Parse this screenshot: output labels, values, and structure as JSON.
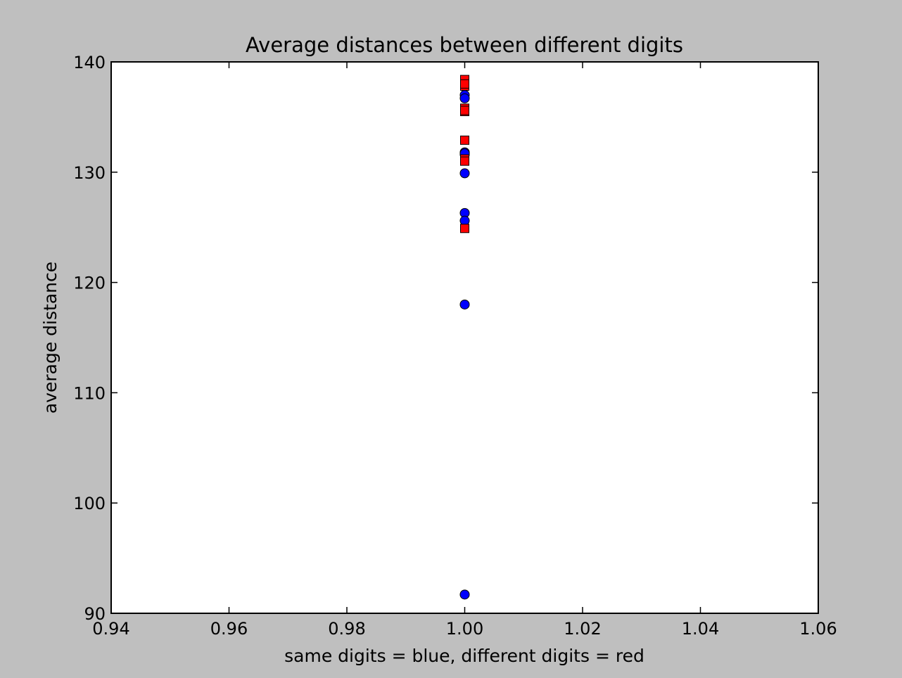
{
  "chart_data": {
    "type": "scatter",
    "title": "Average distances between different digits",
    "xlabel": "same digits = blue, different digits = red",
    "ylabel": "average distance",
    "xlim": [
      0.94,
      1.06
    ],
    "ylim": [
      90,
      140
    ],
    "xticks": [
      0.94,
      0.96,
      0.98,
      1.0,
      1.02,
      1.04,
      1.06
    ],
    "xtick_labels": [
      "0.94",
      "0.96",
      "0.98",
      "1.00",
      "1.02",
      "1.04",
      "1.06"
    ],
    "yticks": [
      90,
      100,
      110,
      120,
      130,
      140
    ],
    "ytick_labels": [
      "90",
      "100",
      "110",
      "120",
      "130",
      "140"
    ],
    "grid": false,
    "series": [
      {
        "color": "#0000ff",
        "marker": "circle",
        "x": [
          1.0,
          1.0,
          1.0,
          1.0,
          1.0,
          1.0,
          1.0,
          1.0,
          1.0,
          1.0
        ],
        "y": [
          137.0,
          136.7,
          131.8,
          131.6,
          129.9,
          126.3,
          125.6,
          118.0,
          91.7,
          131.7
        ]
      },
      {
        "color": "#ff0000",
        "marker": "square",
        "x": [
          1.0,
          1.0,
          1.0,
          1.0,
          1.0,
          1.0,
          1.0,
          1.0,
          1.0,
          1.0
        ],
        "y": [
          138.4,
          137.8,
          135.8,
          135.5,
          132.9,
          131.2,
          124.9,
          138.0,
          135.6,
          131.0
        ]
      }
    ]
  }
}
